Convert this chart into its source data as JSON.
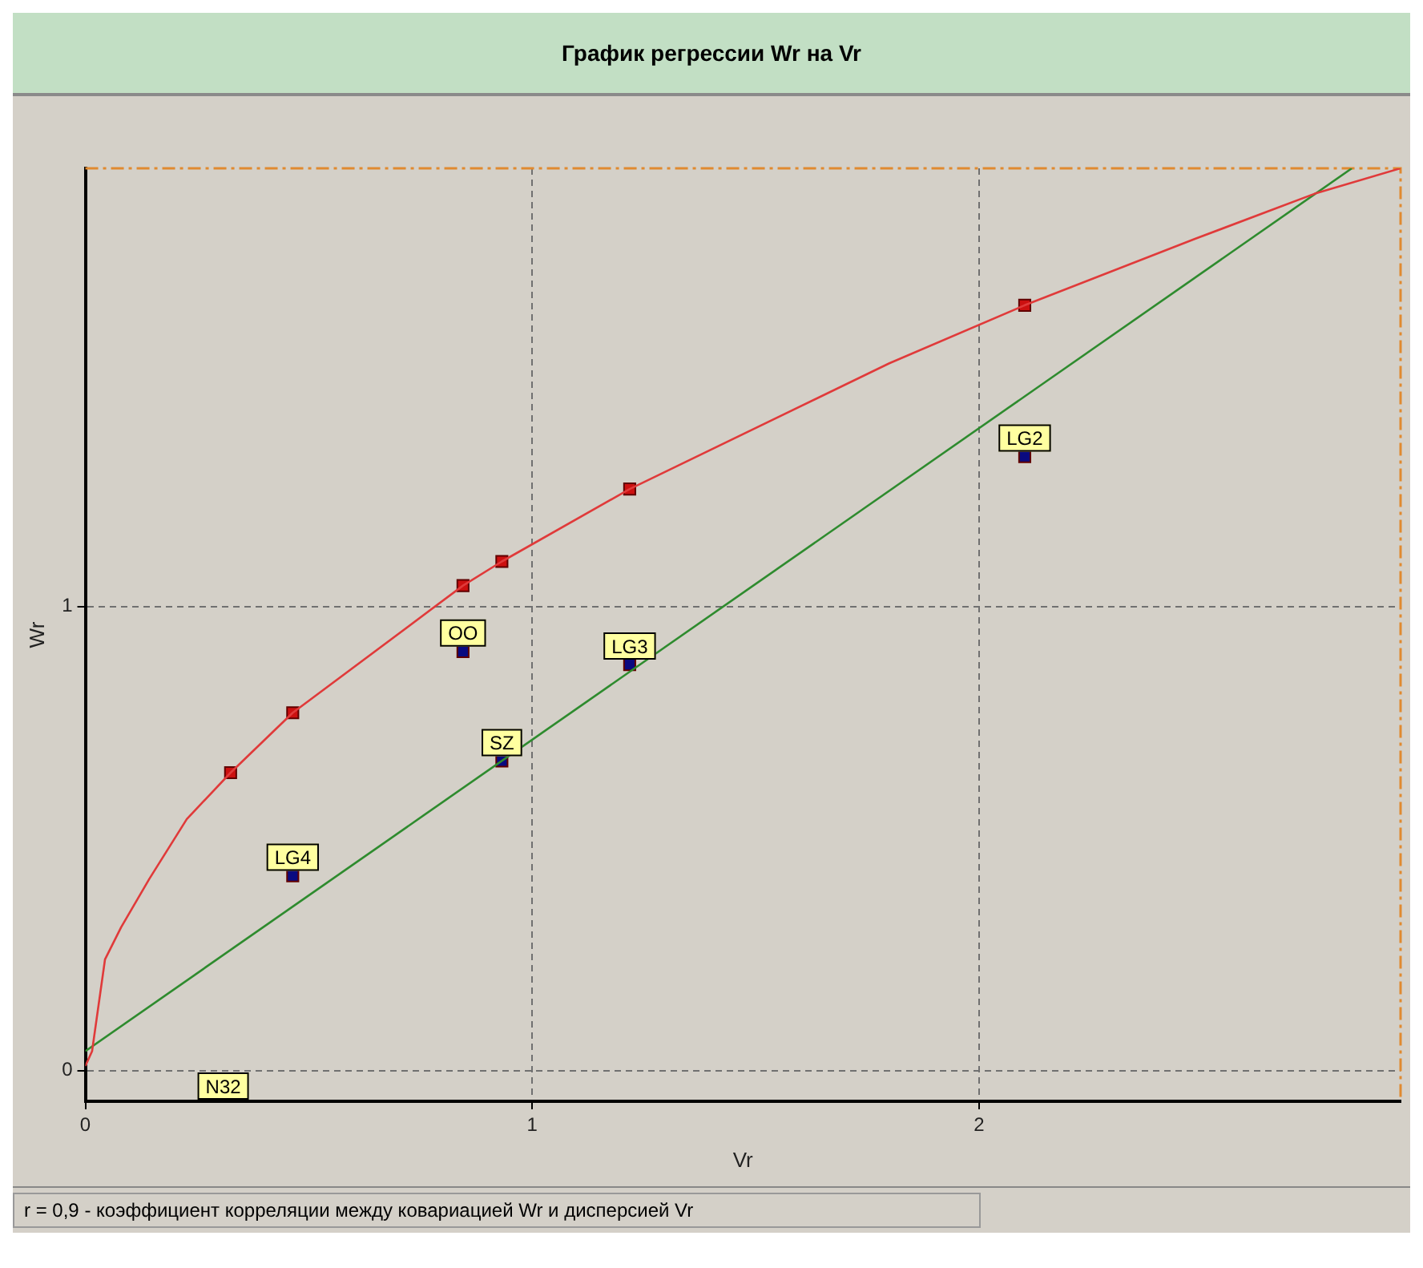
{
  "chart_data": {
    "type": "scatter",
    "title": "График регрессии Wr на Vr",
    "xlabel": "Vr",
    "ylabel": "Wr",
    "xlim": [
      0,
      2.943
    ],
    "ylim": [
      -0.066,
      1.944
    ],
    "xticks": [
      0,
      1,
      2
    ],
    "yticks": [
      0,
      1
    ],
    "grid": true,
    "legend": false,
    "series": [
      {
        "type": "line",
        "color": "#e03a3a",
        "marker": "none",
        "x": [
          0,
          0.015,
          0.044,
          0.08,
          0.143,
          0.227,
          0.325,
          0.464,
          0.845,
          0.932,
          1.218,
          1.799,
          2.102,
          2.483,
          2.75,
          2.943
        ],
        "values": [
          0.01,
          0.042,
          0.24,
          0.309,
          0.413,
          0.542,
          0.642,
          0.771,
          1.045,
          1.097,
          1.253,
          1.524,
          1.649,
          1.792,
          1.889,
          1.944
        ]
      },
      {
        "type": "line",
        "color": "#2e8b2e",
        "marker": "none",
        "x": [
          0,
          2.834
        ],
        "values": [
          0.042,
          1.944
        ]
      },
      {
        "type": "scatter",
        "color": "#cc1010",
        "marker": "square",
        "x": [
          0.325,
          0.464,
          0.845,
          0.932,
          1.218,
          2.102
        ],
        "values": [
          0.642,
          0.771,
          1.045,
          1.097,
          1.253,
          1.649
        ]
      },
      {
        "type": "scatter",
        "color": "#0a0a80",
        "marker": "square",
        "x": [
          0.464,
          0.845,
          0.932,
          1.218,
          2.102
        ],
        "values": [
          0.42,
          0.903,
          0.667,
          0.875,
          1.323
        ]
      }
    ],
    "annotations": [
      {
        "text": "LG4",
        "x": 0.464,
        "y": 0.42
      },
      {
        "text": "OO",
        "x": 0.845,
        "y": 0.903
      },
      {
        "text": "SZ",
        "x": 0.932,
        "y": 0.667
      },
      {
        "text": "LG3",
        "x": 1.218,
        "y": 0.875
      },
      {
        "text": "LG2",
        "x": 2.102,
        "y": 1.323
      },
      "N32",
      "r = 0,9 - коэффициент корреляции между ковариацией Wr и дисперсией Vr"
    ]
  }
}
